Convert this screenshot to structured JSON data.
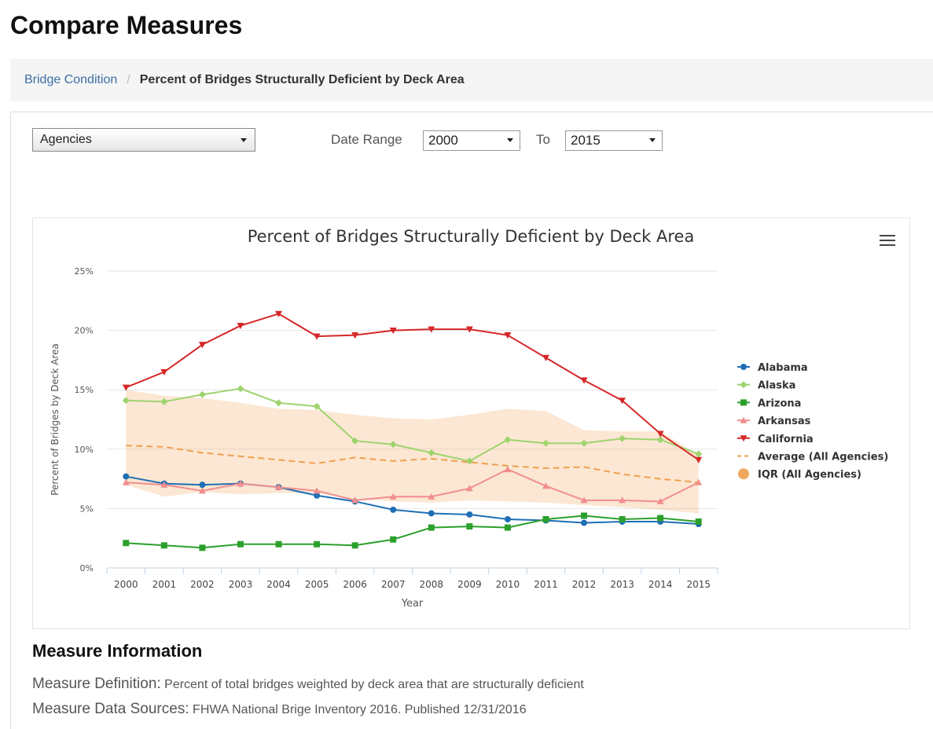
{
  "page": {
    "title": "Compare Measures"
  },
  "breadcrumb": {
    "parent": "Bridge Condition",
    "separator": "/",
    "current": "Percent of Bridges Structurally Deficient by Deck Area"
  },
  "filters": {
    "agencies_value": "Agencies",
    "date_range_label": "Date Range",
    "from_value": "2000",
    "to_label": "To",
    "to_value": "2015"
  },
  "menu_icon": "hamburger-menu-icon",
  "chart_data": {
    "type": "line",
    "title": "Percent of Bridges Structurally Deficient by Deck Area",
    "xlabel": "Year",
    "ylabel": "Percent of Bridges by Deck Area",
    "ylim": [
      0,
      25
    ],
    "yticks": [
      0,
      5,
      10,
      15,
      20,
      25
    ],
    "ytick_labels": [
      "0%",
      "5%",
      "10%",
      "15%",
      "20%",
      "25%"
    ],
    "grid": true,
    "legend_position": "right",
    "categories": [
      "2000",
      "2001",
      "2002",
      "2003",
      "2004",
      "2005",
      "2006",
      "2007",
      "2008",
      "2009",
      "2010",
      "2011",
      "2012",
      "2013",
      "2014",
      "2015"
    ],
    "series": [
      {
        "name": "Alabama",
        "color": "#1f6fb4",
        "marker": "circle",
        "dash": "solid",
        "values": [
          7.7,
          7.1,
          7.0,
          7.1,
          6.8,
          6.1,
          5.6,
          4.9,
          4.6,
          4.5,
          4.1,
          4.0,
          3.8,
          3.9,
          3.9,
          3.7
        ]
      },
      {
        "name": "Alaska",
        "color": "#9fd36f",
        "marker": "diamond",
        "dash": "solid",
        "values": [
          14.1,
          14.0,
          14.6,
          15.1,
          13.9,
          13.6,
          10.7,
          10.4,
          9.7,
          9.0,
          10.8,
          10.5,
          10.5,
          10.9,
          10.8,
          9.6
        ]
      },
      {
        "name": "Arizona",
        "color": "#2ca02c",
        "marker": "square",
        "dash": "solid",
        "values": [
          2.1,
          1.9,
          1.7,
          2.0,
          2.0,
          2.0,
          1.9,
          2.4,
          3.4,
          3.5,
          3.4,
          4.1,
          4.4,
          4.1,
          4.2,
          3.9
        ]
      },
      {
        "name": "Arkansas",
        "color": "#f28e8e",
        "marker": "triangle",
        "dash": "solid",
        "values": [
          7.2,
          7.0,
          6.5,
          7.1,
          6.8,
          6.5,
          5.7,
          6.0,
          6.0,
          6.7,
          8.3,
          6.9,
          5.7,
          5.7,
          5.6,
          7.2
        ]
      },
      {
        "name": "California",
        "color": "#d62728",
        "marker": "triangle-down",
        "dash": "solid",
        "values": [
          15.2,
          16.5,
          18.8,
          20.4,
          21.4,
          19.5,
          19.6,
          20.0,
          20.1,
          20.1,
          19.6,
          17.7,
          15.8,
          14.1,
          11.3,
          9.1
        ]
      },
      {
        "name": "Average (All Agencies)",
        "color": "#f0a050",
        "marker": "none",
        "dash": "dashed",
        "values": [
          10.3,
          10.2,
          9.7,
          9.4,
          9.1,
          8.8,
          9.3,
          9.0,
          9.2,
          8.9,
          8.6,
          8.4,
          8.5,
          7.9,
          7.5,
          7.2
        ]
      }
    ],
    "iqr": {
      "name": "IQR (All Agencies)",
      "color": "#f0a050",
      "lower": [
        7.0,
        6.0,
        6.4,
        6.2,
        6.3,
        6.3,
        5.8,
        5.6,
        5.5,
        5.7,
        5.6,
        5.5,
        5.3,
        5.1,
        4.9,
        4.6
      ],
      "upper": [
        15.0,
        14.5,
        14.3,
        13.9,
        13.4,
        13.3,
        12.9,
        12.6,
        12.5,
        12.9,
        13.4,
        13.2,
        11.6,
        11.5,
        11.5,
        9.5
      ]
    }
  },
  "measure_info": {
    "heading": "Measure Information",
    "definition_label": "Measure Definition:",
    "definition_value": "Percent of total bridges weighted by deck area that are structurally deficient",
    "sources_label": "Measure Data Sources:",
    "sources_value": "FHWA National Brige Inventory 2016. Published 12/31/2016"
  }
}
